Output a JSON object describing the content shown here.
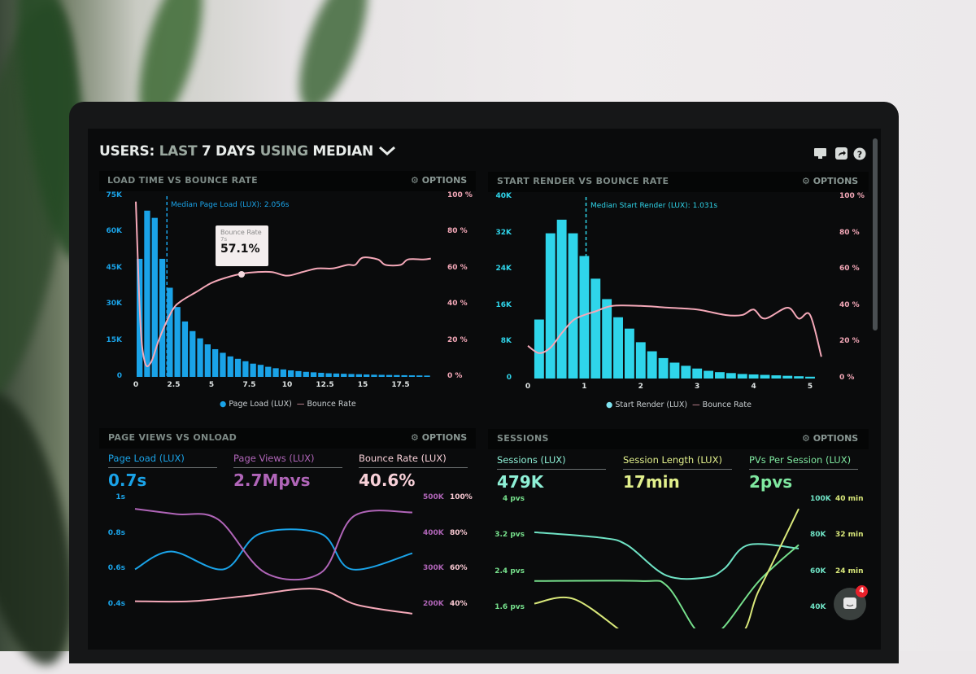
{
  "header": {
    "title_parts": [
      "USERS:",
      "LAST",
      "7 DAYS",
      "USING",
      "MEDIAN"
    ],
    "icons": [
      "monitor-icon",
      "share-icon",
      "help-icon"
    ]
  },
  "colors": {
    "blue": "#1aa3e8",
    "cyan": "#2fd5ea",
    "pink": "#f4a8b8",
    "purple": "#b065b8",
    "mint": "#6fe3c5",
    "green": "#76e08c",
    "yellow": "#d9e87a"
  },
  "panels": [
    {
      "title": "LOAD TIME VS BOUNCE RATE",
      "options": "OPTIONS",
      "annotation": "Median Page Load (LUX): 2.056s",
      "tooltip": {
        "title": "Bounce Rate",
        "sub": "7s",
        "value": "57.1%"
      },
      "legend": [
        "Page Load (LUX)",
        "Bounce Rate"
      ]
    },
    {
      "title": "START RENDER VS BOUNCE RATE",
      "options": "OPTIONS",
      "annotation": "Median Start Render (LUX): 1.031s",
      "legend": [
        "Start Render (LUX)",
        "Bounce Rate"
      ]
    },
    {
      "title": "PAGE VIEWS VS ONLOAD",
      "options": "OPTIONS",
      "stats": [
        {
          "label": "Page Load (LUX)",
          "value": "0.7s"
        },
        {
          "label": "Page Views (LUX)",
          "value": "2.7Mpvs"
        },
        {
          "label": "Bounce Rate (LUX)",
          "value": "40.6%"
        }
      ]
    },
    {
      "title": "SESSIONS",
      "options": "OPTIONS",
      "stats": [
        {
          "label": "Sessions (LUX)",
          "value": "479K"
        },
        {
          "label": "Session Length (LUX)",
          "value": "17min"
        },
        {
          "label": "PVs Per Session (LUX)",
          "value": "2pvs"
        }
      ]
    }
  ],
  "chat": {
    "badge": "4"
  },
  "chart_data": [
    {
      "type": "bar",
      "title": "LOAD TIME VS BOUNCE RATE",
      "x_ticks": [
        "0",
        "2.5",
        "5",
        "7.5",
        "10",
        "12.5",
        "15",
        "17.5"
      ],
      "y_ticks": [
        "0",
        "15K",
        "30K",
        "45K",
        "60K",
        "75K"
      ],
      "y2_ticks": [
        "0 %",
        "20 %",
        "40 %",
        "60 %",
        "80 %",
        "100 %"
      ],
      "xlim": [
        0,
        19.5
      ],
      "ylim": [
        0,
        75000
      ],
      "y2lim": [
        0,
        100
      ],
      "bar_width": 0.5,
      "median": 2.056,
      "bars_x": [
        0,
        0.5,
        1,
        1.5,
        2,
        2.5,
        3,
        3.5,
        4,
        4.5,
        5,
        5.5,
        6,
        6.5,
        7,
        7.5,
        8,
        8.5,
        9,
        9.5,
        10,
        10.5,
        11,
        11.5,
        12,
        12.5,
        13,
        13.5,
        14,
        14.5,
        15,
        15.5,
        16,
        16.5,
        17,
        17.5,
        18,
        18.5,
        19
      ],
      "series": [
        {
          "name": "Page Load (LUX)",
          "values": [
            49000,
            69000,
            66000,
            49000,
            37000,
            29000,
            23000,
            19000,
            16000,
            13500,
            11500,
            10000,
            8500,
            7500,
            6500,
            5500,
            5000,
            4200,
            3600,
            3100,
            2700,
            2400,
            2100,
            1900,
            1700,
            1500,
            1400,
            1300,
            1200,
            1100,
            1000,
            900,
            850,
            800,
            750,
            700,
            650,
            600,
            550
          ]
        },
        {
          "name": "Bounce Rate",
          "points": [
            [
              0,
              97
            ],
            [
              0.3,
              30
            ],
            [
              0.6,
              8
            ],
            [
              1,
              8
            ],
            [
              1.5,
              20
            ],
            [
              2,
              30
            ],
            [
              2.5,
              38
            ],
            [
              3,
              42
            ],
            [
              4,
              47
            ],
            [
              5,
              52
            ],
            [
              6,
              55
            ],
            [
              7,
              57.1
            ],
            [
              8,
              58
            ],
            [
              9,
              58
            ],
            [
              10,
              56
            ],
            [
              11,
              58
            ],
            [
              12,
              60
            ],
            [
              13,
              60
            ],
            [
              14,
              62
            ],
            [
              14.5,
              62
            ],
            [
              15,
              66
            ],
            [
              16,
              65
            ],
            [
              16.5,
              62
            ],
            [
              17.5,
              62
            ],
            [
              18,
              65
            ],
            [
              19,
              65
            ],
            [
              19.5,
              65.5
            ]
          ]
        }
      ]
    },
    {
      "type": "bar",
      "title": "START RENDER VS BOUNCE RATE",
      "x_ticks": [
        "0",
        "1",
        "2",
        "3",
        "4",
        "5"
      ],
      "y_ticks": [
        "0",
        "8K",
        "16K",
        "24K",
        "32K",
        "40K"
      ],
      "y2_ticks": [
        "0 %",
        "20 %",
        "40 %",
        "60 %",
        "80 %",
        "100 %"
      ],
      "xlim": [
        0,
        5.2
      ],
      "ylim": [
        0,
        40000
      ],
      "y2lim": [
        0,
        100
      ],
      "bar_width": 0.2,
      "median": 1.031,
      "bars_x": [
        0.2,
        0.4,
        0.6,
        0.8,
        1.0,
        1.2,
        1.4,
        1.6,
        1.8,
        2.0,
        2.2,
        2.4,
        2.6,
        2.8,
        3.0,
        3.2,
        3.4,
        3.6,
        3.8,
        4.0,
        4.2,
        4.4,
        4.6,
        4.8,
        5.0
      ],
      "series": [
        {
          "name": "Start Render (LUX)",
          "values": [
            13000,
            32000,
            35000,
            32000,
            27000,
            22000,
            17500,
            13500,
            11000,
            8000,
            6000,
            4500,
            3500,
            2800,
            2200,
            1700,
            1400,
            1200,
            1000,
            900,
            800,
            700,
            600,
            500,
            400
          ]
        },
        {
          "name": "Bounce Rate",
          "points": [
            [
              0,
              18
            ],
            [
              0.2,
              14
            ],
            [
              0.4,
              17
            ],
            [
              0.6,
              25
            ],
            [
              0.8,
              32
            ],
            [
              1,
              35
            ],
            [
              1.2,
              37
            ],
            [
              1.5,
              40
            ],
            [
              2,
              40
            ],
            [
              2.5,
              39
            ],
            [
              3,
              38
            ],
            [
              3.5,
              35
            ],
            [
              3.8,
              35
            ],
            [
              4,
              38
            ],
            [
              4.2,
              33
            ],
            [
              4.6,
              39
            ],
            [
              4.8,
              33
            ],
            [
              5,
              35
            ],
            [
              5.2,
              12
            ]
          ]
        }
      ]
    },
    {
      "type": "line",
      "title": "PAGE VIEWS VS ONLOAD",
      "y_ticks": [
        "0.4s",
        "0.6s",
        "0.8s",
        "1s"
      ],
      "y2_ticks": [
        "200K",
        "300K",
        "400K",
        "500K"
      ],
      "y3_ticks": [
        "40%",
        "60%",
        "80%",
        "100%"
      ],
      "series": [
        {
          "name": "Page Load (LUX)",
          "axis": "s",
          "range": [
            0.4,
            1
          ],
          "points": [
            [
              0,
              0.6
            ],
            [
              1.3,
              0.7
            ],
            [
              3.2,
              0.6
            ],
            [
              4.5,
              0.8
            ],
            [
              6.7,
              0.8
            ],
            [
              7.8,
              0.6
            ],
            [
              10,
              0.69
            ]
          ]
        },
        {
          "name": "Page Views (LUX)",
          "axis": "K",
          "range": [
            200,
            500
          ],
          "points": [
            [
              0,
              470
            ],
            [
              1.5,
              455
            ],
            [
              3,
              440
            ],
            [
              4.7,
              290
            ],
            [
              6.7,
              290
            ],
            [
              7.9,
              450
            ],
            [
              10,
              460
            ]
          ]
        },
        {
          "name": "Bounce Rate (LUX)",
          "axis": "%",
          "range": [
            40,
            100
          ],
          "points": [
            [
              0,
              42
            ],
            [
              2,
              42
            ],
            [
              4,
              45
            ],
            [
              6.5,
              49
            ],
            [
              8,
              40
            ],
            [
              10,
              35
            ]
          ]
        }
      ]
    },
    {
      "type": "line",
      "title": "SESSIONS",
      "y_ticks": [
        "1.6 pvs",
        "2.4 pvs",
        "3.2 pvs",
        "4 pvs"
      ],
      "y2_ticks": [
        "40K",
        "60K",
        "80K",
        "100K"
      ],
      "y3_ticks": [
        "24 min",
        "32 min",
        "40 min"
      ],
      "series": [
        {
          "name": "Sessions (LUX)",
          "axis": "K",
          "range": [
            40,
            100
          ],
          "points": [
            [
              0,
              82
            ],
            [
              2.5,
              79
            ],
            [
              3.5,
              75
            ],
            [
              5,
              58
            ],
            [
              6.5,
              57
            ],
            [
              7.2,
              62
            ],
            [
              8.1,
              75
            ],
            [
              10,
              73
            ]
          ]
        },
        {
          "name": "PVs Per Session (LUX)",
          "axis": "pvs",
          "range": [
            1.6,
            4
          ],
          "points": [
            [
              0,
              2.2
            ],
            [
              4,
              2.2
            ],
            [
              5,
              2.1
            ],
            [
              6,
              1.2
            ],
            [
              6.5,
              0.9
            ],
            [
              7.2,
              1.2
            ],
            [
              8.5,
              2.2
            ],
            [
              10,
              3.0
            ]
          ]
        },
        {
          "name": "Session Length (LUX)",
          "axis": "min",
          "range": [
            16,
            40
          ],
          "points": [
            [
              0,
              17
            ],
            [
              1.5,
              18
            ],
            [
              3.5,
              10
            ],
            [
              4,
              9
            ],
            [
              7.5,
              9
            ],
            [
              8.5,
              20
            ],
            [
              10,
              38
            ]
          ]
        }
      ]
    }
  ]
}
